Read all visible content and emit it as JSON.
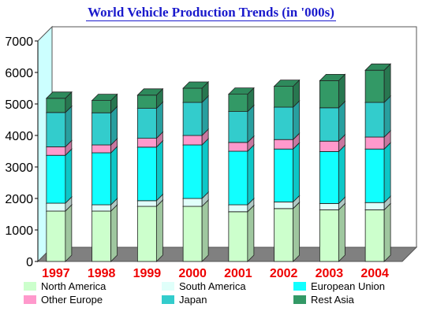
{
  "chart_data": {
    "type": "bar",
    "stacked": true,
    "title": "World Vehicle Production Trends (in '000s)",
    "categories": [
      "1997",
      "1998",
      "1999",
      "2000",
      "2001",
      "2002",
      "2003",
      "2004"
    ],
    "series": [
      {
        "name": "North America",
        "color": "#ccffcc",
        "values": [
          1600,
          1600,
          1750,
          1750,
          1580,
          1680,
          1640,
          1640
        ]
      },
      {
        "name": "South America",
        "color": "#e0fffa",
        "values": [
          250,
          200,
          180,
          250,
          220,
          210,
          200,
          230
        ]
      },
      {
        "name": "European Union",
        "color": "#11ffff",
        "values": [
          1520,
          1650,
          1700,
          1700,
          1700,
          1680,
          1650,
          1700
        ]
      },
      {
        "name": "Other Europe",
        "color": "#ff99cc",
        "values": [
          270,
          250,
          280,
          300,
          280,
          300,
          330,
          380
        ]
      },
      {
        "name": "Japan",
        "color": "#33cccc",
        "values": [
          1090,
          1020,
          950,
          1050,
          980,
          1030,
          1060,
          1100
        ]
      },
      {
        "name": "Rest Asia",
        "color": "#339966",
        "values": [
          450,
          390,
          420,
          450,
          550,
          660,
          860,
          1020
        ]
      }
    ],
    "ylim": [
      0,
      7000
    ],
    "yticks": [
      0,
      1000,
      2000,
      3000,
      4000,
      5000,
      6000,
      7000
    ],
    "grid": false,
    "legend_position": "bottom"
  }
}
